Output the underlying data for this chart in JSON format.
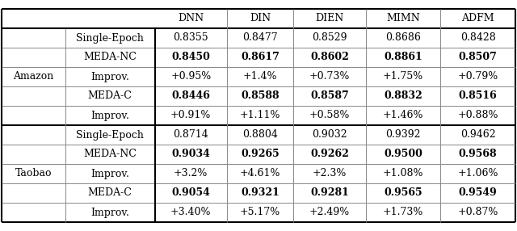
{
  "col_headers": [
    "DNN",
    "DIN",
    "DIEN",
    "MIMN",
    "ADFM"
  ],
  "row_groups": [
    {
      "group_label": "Amazon",
      "rows": [
        {
          "label": "Single-Epoch",
          "values": [
            "0.8355",
            "0.8477",
            "0.8529",
            "0.8686",
            "0.8428"
          ],
          "bold": [
            false,
            false,
            false,
            false,
            false
          ]
        },
        {
          "label": "MEDA-NC",
          "values": [
            "0.8450",
            "0.8617",
            "0.8602",
            "0.8861",
            "0.8507"
          ],
          "bold": [
            true,
            true,
            true,
            true,
            true
          ]
        },
        {
          "label": "Improv.",
          "values": [
            "+0.95%",
            "+1.4%",
            "+0.73%",
            "+1.75%",
            "+0.79%"
          ],
          "bold": [
            false,
            false,
            false,
            false,
            false
          ]
        },
        {
          "label": "MEDA-C",
          "values": [
            "0.8446",
            "0.8588",
            "0.8587",
            "0.8832",
            "0.8516"
          ],
          "bold": [
            true,
            true,
            true,
            true,
            true
          ]
        },
        {
          "label": "Improv.",
          "values": [
            "+0.91%",
            "+1.11%",
            "+0.58%",
            "+1.46%",
            "+0.88%"
          ],
          "bold": [
            false,
            false,
            false,
            false,
            false
          ]
        }
      ]
    },
    {
      "group_label": "Taobao",
      "rows": [
        {
          "label": "Single-Epoch",
          "values": [
            "0.8714",
            "0.8804",
            "0.9032",
            "0.9392",
            "0.9462"
          ],
          "bold": [
            false,
            false,
            false,
            false,
            false
          ]
        },
        {
          "label": "MEDA-NC",
          "values": [
            "0.9034",
            "0.9265",
            "0.9262",
            "0.9500",
            "0.9568"
          ],
          "bold": [
            true,
            true,
            true,
            true,
            true
          ]
        },
        {
          "label": "Improv.",
          "values": [
            "+3.2%",
            "+4.61%",
            "+2.3%",
            "+1.08%",
            "+1.06%"
          ],
          "bold": [
            false,
            false,
            false,
            false,
            false
          ]
        },
        {
          "label": "MEDA-C",
          "values": [
            "0.9054",
            "0.9321",
            "0.9281",
            "0.9565",
            "0.9549"
          ],
          "bold": [
            true,
            true,
            true,
            true,
            true
          ]
        },
        {
          "label": "Improv.",
          "values": [
            "+3.40%",
            "+5.17%",
            "+2.49%",
            "+1.73%",
            "+0.87%"
          ],
          "bold": [
            false,
            false,
            false,
            false,
            false
          ]
        }
      ]
    }
  ],
  "background_color": "#ffffff",
  "font_size": 9.0,
  "figsize": [
    6.4,
    2.86
  ],
  "dpi": 100
}
